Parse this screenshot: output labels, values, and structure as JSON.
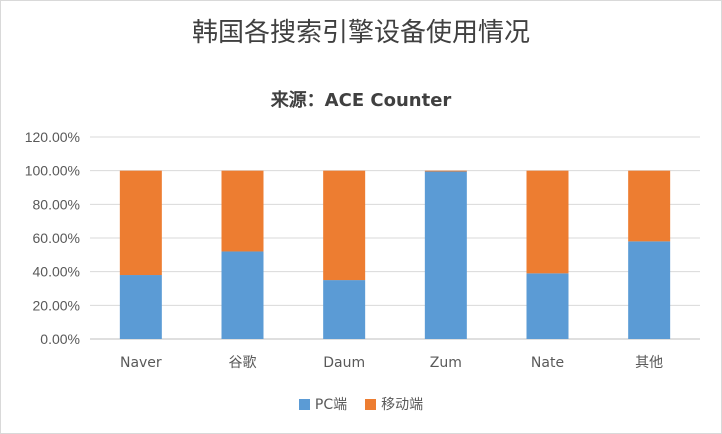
{
  "chart_data": {
    "type": "bar",
    "stacked": true,
    "title": "韩国各搜索引擎设备使用情况",
    "subtitle": "来源：ACE Counter",
    "categories": [
      "Naver",
      "谷歌",
      "Daum",
      "Zum",
      "Nate",
      "其他"
    ],
    "series": [
      {
        "name": "PC端",
        "color": "#5b9bd5",
        "values": [
          0.38,
          0.52,
          0.35,
          0.995,
          0.39,
          0.58
        ]
      },
      {
        "name": "移动端",
        "color": "#ed7d31",
        "values": [
          0.62,
          0.48,
          0.65,
          0.005,
          0.61,
          0.42
        ]
      }
    ],
    "ylim": [
      0,
      1.2
    ],
    "y_ticks": [
      "0.00%",
      "20.00%",
      "40.00%",
      "60.00%",
      "80.00%",
      "100.00%",
      "120.00%"
    ],
    "grid": true,
    "legend_position": "bottom"
  }
}
